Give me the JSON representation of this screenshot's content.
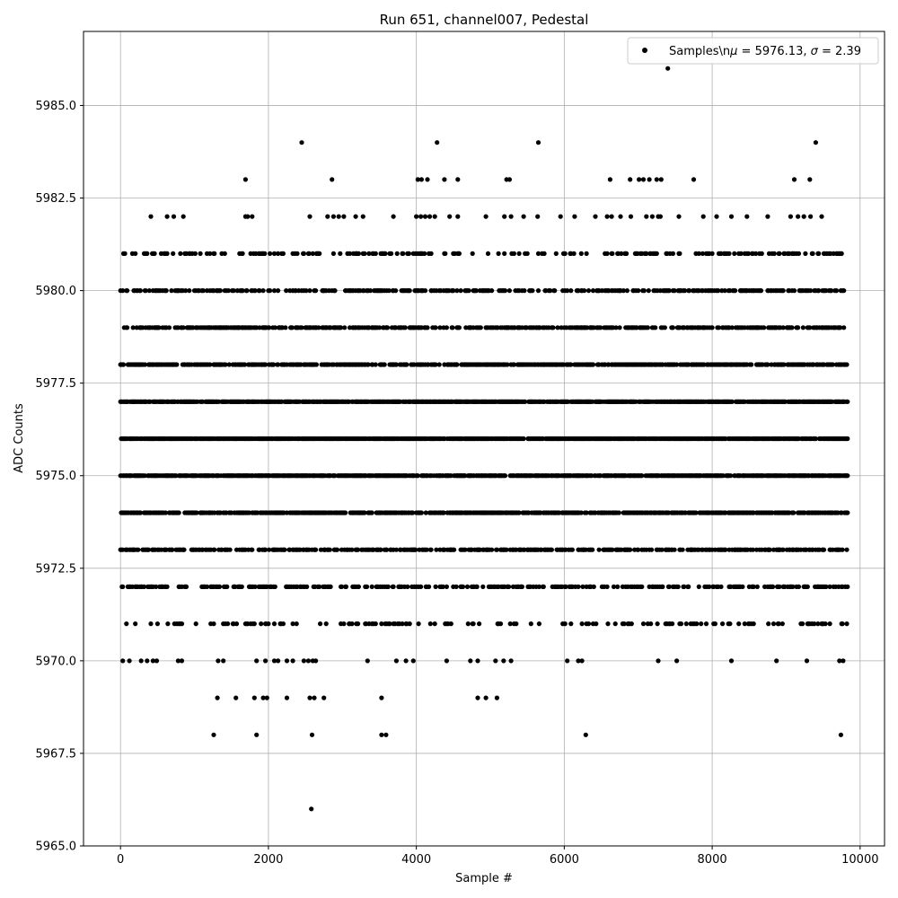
{
  "chart_data": {
    "type": "scatter",
    "title": "Run 651, channel007, Pedestal",
    "xlabel": "Sample #",
    "ylabel": "ADC Counts",
    "xlim": [
      -500,
      10330
    ],
    "ylim": [
      5965.0,
      5987.0
    ],
    "xticks": [
      0,
      2000,
      4000,
      6000,
      8000,
      10000
    ],
    "xtick_labels": [
      "0",
      "2000",
      "4000",
      "6000",
      "8000",
      "10000"
    ],
    "yticks": [
      5965.0,
      5967.5,
      5970.0,
      5972.5,
      5975.0,
      5977.5,
      5980.0,
      5982.5,
      5985.0
    ],
    "ytick_labels": [
      "5965.0",
      "5967.5",
      "5970.0",
      "5972.5",
      "5975.0",
      "5977.5",
      "5980.0",
      "5982.5",
      "5985.0"
    ],
    "grid": true,
    "legend": {
      "position": "top-right"
    },
    "series": [
      {
        "name": "Samples\\nμ = 5976.13, σ = 2.39",
        "color": "#000000",
        "marker": "circle",
        "x_range": [
          0,
          9830
        ],
        "levels": [
          {
            "y": 5981,
            "density": 0.22
          },
          {
            "y": 5980,
            "density": 0.33
          },
          {
            "y": 5979,
            "density": 0.45
          },
          {
            "y": 5978,
            "density": 0.55
          },
          {
            "y": 5977,
            "density": 0.75
          },
          {
            "y": 5976,
            "density": 0.75
          },
          {
            "y": 5975,
            "density": 0.75
          },
          {
            "y": 5974,
            "density": 0.6
          },
          {
            "y": 5973,
            "density": 0.45
          },
          {
            "y": 5972,
            "density": 0.28
          },
          {
            "y": 5971,
            "density": 0.15
          }
        ],
        "points": [
          [
            2580,
            5966
          ],
          [
            7400,
            5986
          ],
          [
            2450,
            5984
          ],
          [
            4280,
            5984
          ],
          [
            5650,
            5984
          ],
          [
            9400,
            5984
          ],
          [
            1690,
            5983
          ],
          [
            2860,
            5983
          ],
          [
            4020,
            5983
          ],
          [
            4070,
            5983
          ],
          [
            4150,
            5983
          ],
          [
            4380,
            5983
          ],
          [
            4560,
            5983
          ],
          [
            5220,
            5983
          ],
          [
            5260,
            5983
          ],
          [
            6620,
            5983
          ],
          [
            6890,
            5983
          ],
          [
            7010,
            5983
          ],
          [
            7070,
            5983
          ],
          [
            7150,
            5983
          ],
          [
            7250,
            5983
          ],
          [
            7310,
            5983
          ],
          [
            7750,
            5983
          ],
          [
            9110,
            5983
          ],
          [
            9320,
            5983
          ],
          [
            410,
            5982
          ],
          [
            630,
            5982
          ],
          [
            720,
            5982
          ],
          [
            850,
            5982
          ],
          [
            1690,
            5982
          ],
          [
            1720,
            5982
          ],
          [
            1780,
            5982
          ],
          [
            2560,
            5982
          ],
          [
            2800,
            5982
          ],
          [
            2880,
            5982
          ],
          [
            2950,
            5982
          ],
          [
            3020,
            5982
          ],
          [
            3180,
            5982
          ],
          [
            3280,
            5982
          ],
          [
            3690,
            5982
          ],
          [
            4000,
            5982
          ],
          [
            4060,
            5982
          ],
          [
            4120,
            5982
          ],
          [
            4180,
            5982
          ],
          [
            4250,
            5982
          ],
          [
            4450,
            5982
          ],
          [
            4560,
            5982
          ],
          [
            4940,
            5982
          ],
          [
            5190,
            5982
          ],
          [
            5280,
            5982
          ],
          [
            5450,
            5982
          ],
          [
            5640,
            5982
          ],
          [
            5950,
            5982
          ],
          [
            6140,
            5982
          ],
          [
            6420,
            5982
          ],
          [
            6580,
            5982
          ],
          [
            6640,
            5982
          ],
          [
            6760,
            5982
          ],
          [
            6900,
            5982
          ],
          [
            7110,
            5982
          ],
          [
            7190,
            5982
          ],
          [
            7270,
            5982
          ],
          [
            7300,
            5982
          ],
          [
            7550,
            5982
          ],
          [
            7880,
            5982
          ],
          [
            8060,
            5982
          ],
          [
            8260,
            5982
          ],
          [
            8470,
            5982
          ],
          [
            8750,
            5982
          ],
          [
            9060,
            5982
          ],
          [
            9160,
            5982
          ],
          [
            9240,
            5982
          ],
          [
            9330,
            5982
          ],
          [
            9480,
            5982
          ],
          [
            1260,
            5968
          ],
          [
            1840,
            5968
          ],
          [
            2590,
            5968
          ],
          [
            3530,
            5968
          ],
          [
            3590,
            5968
          ],
          [
            6290,
            5968
          ],
          [
            9740,
            5968
          ],
          [
            1310,
            5969
          ],
          [
            1560,
            5969
          ],
          [
            1810,
            5969
          ],
          [
            1930,
            5969
          ],
          [
            1980,
            5969
          ],
          [
            2250,
            5969
          ],
          [
            2560,
            5969
          ],
          [
            2620,
            5969
          ],
          [
            2750,
            5969
          ],
          [
            3530,
            5969
          ],
          [
            4830,
            5969
          ],
          [
            4940,
            5969
          ],
          [
            5090,
            5969
          ],
          [
            30,
            5970
          ],
          [
            120,
            5970
          ],
          [
            280,
            5970
          ],
          [
            360,
            5970
          ],
          [
            440,
            5970
          ],
          [
            490,
            5970
          ],
          [
            780,
            5970
          ],
          [
            830,
            5970
          ],
          [
            1320,
            5970
          ],
          [
            1390,
            5970
          ],
          [
            1840,
            5970
          ],
          [
            1960,
            5970
          ],
          [
            2080,
            5970
          ],
          [
            2130,
            5970
          ],
          [
            2250,
            5970
          ],
          [
            2330,
            5970
          ],
          [
            2480,
            5970
          ],
          [
            2540,
            5970
          ],
          [
            2600,
            5970
          ],
          [
            2640,
            5970
          ],
          [
            3340,
            5970
          ],
          [
            3730,
            5970
          ],
          [
            3860,
            5970
          ],
          [
            3960,
            5970
          ],
          [
            4410,
            5970
          ],
          [
            4730,
            5970
          ],
          [
            4830,
            5970
          ],
          [
            5070,
            5970
          ],
          [
            5180,
            5970
          ],
          [
            5280,
            5970
          ],
          [
            6040,
            5970
          ],
          [
            6190,
            5970
          ],
          [
            6240,
            5970
          ],
          [
            7270,
            5970
          ],
          [
            7520,
            5970
          ],
          [
            8260,
            5970
          ],
          [
            8870,
            5970
          ],
          [
            9280,
            5970
          ],
          [
            9720,
            5970
          ],
          [
            9770,
            5970
          ]
        ]
      }
    ]
  }
}
